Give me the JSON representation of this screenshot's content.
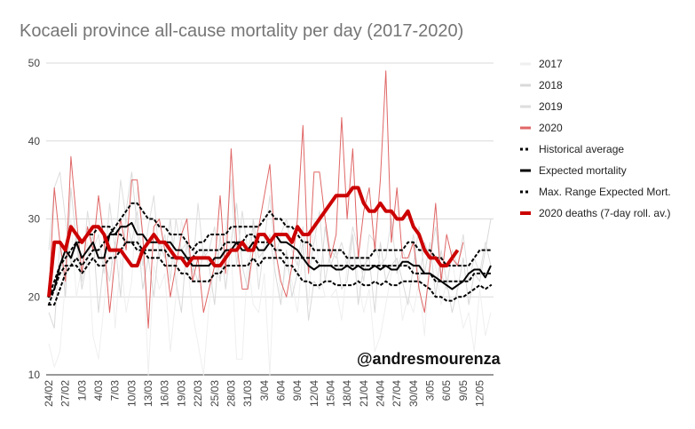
{
  "chart_data": {
    "type": "line",
    "title": "Kocaeli province all-cause mortality per day (2017-2020)",
    "watermark": "@andresmourenza",
    "ylim": [
      10,
      50
    ],
    "yticks": [
      10,
      20,
      30,
      40,
      50
    ],
    "xtick_labels": [
      "24/02",
      "27/02",
      "1/03",
      "4/03",
      "7/03",
      "10/03",
      "13/03",
      "16/03",
      "19/03",
      "22/03",
      "25/03",
      "28/03",
      "31/03",
      "3/04",
      "6/04",
      "9/04",
      "12/04",
      "15/04",
      "18/04",
      "21/04",
      "24/04",
      "27/04",
      "30/04",
      "3/05",
      "6/05",
      "9/05",
      "12/05"
    ],
    "x_start": "24/02",
    "n_days": 81,
    "series": [
      {
        "name": "2017",
        "color": "#efefef",
        "width": 1,
        "dash": "",
        "values": [
          14,
          11,
          13,
          22,
          30,
          20,
          24,
          27,
          15,
          12,
          19,
          28,
          16,
          25,
          18,
          22,
          34,
          27,
          10,
          24,
          21,
          23,
          13,
          20,
          30,
          25,
          18,
          14,
          10,
          19,
          24,
          22,
          27,
          26,
          12,
          12,
          25,
          19,
          18,
          23,
          10,
          27,
          20,
          24,
          22,
          18,
          26,
          19,
          30,
          23,
          20,
          20,
          21,
          17,
          24,
          28,
          22,
          18,
          21,
          13,
          15,
          19,
          23,
          25,
          17,
          20,
          18,
          22,
          15,
          26,
          24,
          19,
          22,
          25,
          20,
          16,
          18,
          13,
          21,
          15,
          18
        ]
      },
      {
        "name": "2018",
        "color": "#d9d9d9",
        "width": 1,
        "dash": "",
        "values": [
          18,
          16,
          27,
          20,
          34,
          27,
          21,
          25,
          28,
          18,
          25,
          22,
          27,
          20,
          31,
          36,
          29,
          21,
          25,
          20,
          27,
          25,
          30,
          22,
          18,
          27,
          24,
          22,
          26,
          24,
          19,
          28,
          21,
          27,
          32,
          24,
          21,
          30,
          25,
          26,
          28,
          23,
          19,
          26,
          20,
          23,
          27,
          17,
          22,
          21,
          29,
          24,
          26,
          21,
          22,
          28,
          19,
          24,
          25,
          18,
          27,
          22,
          24,
          25,
          22,
          19,
          24,
          29,
          23,
          27,
          20,
          26,
          22,
          18,
          21,
          25,
          19,
          23,
          22,
          26,
          30
        ]
      },
      {
        "name": "2019",
        "color": "#dedede",
        "width": 1,
        "dash": "",
        "values": [
          26,
          34,
          36,
          30,
          24,
          28,
          22,
          31,
          26,
          28,
          23,
          32,
          26,
          35,
          30,
          27,
          31,
          24,
          29,
          33,
          25,
          28,
          22,
          30,
          26,
          27,
          23,
          32,
          25,
          26,
          29,
          22,
          28,
          35,
          24,
          31,
          26,
          29,
          21,
          27,
          33,
          25,
          28,
          30,
          26,
          24,
          29,
          23,
          27,
          31,
          22,
          26,
          25,
          27,
          24,
          29,
          26,
          22,
          28,
          27,
          24,
          25,
          30,
          23,
          26,
          24,
          28,
          22,
          27,
          25,
          29,
          23,
          21,
          26,
          24,
          28,
          22,
          25,
          23,
          27,
          24
        ]
      },
      {
        "name": "2020",
        "color": "#e06666",
        "width": 1,
        "dash": "",
        "values": [
          20,
          34,
          27,
          22,
          38,
          30,
          23,
          29,
          26,
          33,
          27,
          18,
          25,
          30,
          26,
          35,
          35,
          28,
          16,
          29,
          30,
          26,
          20,
          24,
          28,
          30,
          22,
          25,
          18,
          21,
          24,
          33,
          23,
          39,
          27,
          21,
          21,
          26,
          29,
          33,
          37,
          26,
          22,
          20,
          24,
          30,
          42,
          23,
          36,
          36,
          30,
          25,
          28,
          43,
          30,
          39,
          25,
          31,
          34,
          26,
          35,
          49,
          27,
          34,
          25,
          25,
          27,
          21,
          18,
          24,
          32,
          22,
          28,
          25,
          24,
          27,
          null,
          null,
          null,
          null,
          null
        ]
      },
      {
        "name": "Historical average",
        "color": "#000000",
        "width": 2,
        "dash": "2 4",
        "values": [
          20,
          22,
          24,
          25,
          26,
          27,
          27,
          28,
          28,
          29,
          29,
          29,
          28,
          28,
          27,
          27,
          27,
          26,
          26,
          26,
          26,
          26,
          25,
          25,
          25,
          25,
          25,
          26,
          26,
          26,
          26,
          26,
          27,
          27,
          27,
          27,
          28,
          28,
          27,
          27,
          27,
          26,
          26,
          25,
          25,
          25,
          25,
          25,
          25,
          24,
          24,
          24,
          24,
          24,
          24,
          24,
          24,
          24,
          24,
          24,
          24,
          24,
          24,
          24,
          24,
          24,
          23,
          23,
          23,
          23,
          22,
          22,
          22,
          22,
          22,
          22,
          22,
          23,
          23,
          23,
          23
        ]
      },
      {
        "name": "Expected mortality",
        "color": "#000000",
        "width": 2,
        "dash": "",
        "values": [
          20,
          21,
          24,
          26,
          25,
          27,
          25,
          26,
          27,
          25,
          25,
          28,
          28,
          29,
          29,
          29.5,
          28,
          28,
          27,
          27,
          27,
          27,
          27,
          26,
          26,
          25,
          24,
          24,
          24,
          24,
          25,
          25,
          26,
          26,
          27,
          26,
          26,
          27,
          26,
          26,
          27,
          28,
          27,
          27,
          26.5,
          26,
          25,
          24,
          23.5,
          24,
          24,
          24,
          23.5,
          23.5,
          24,
          23.5,
          24,
          23.5,
          23.5,
          24,
          23.5,
          24,
          23.5,
          23.5,
          24.5,
          24.5,
          24,
          24,
          23,
          23,
          22.5,
          22,
          21.5,
          21,
          21.5,
          22,
          23,
          23.5,
          23.5,
          22.5,
          24
        ]
      },
      {
        "name": "Max. Range Expected Mort.",
        "color": "#000000",
        "width": 2,
        "dash": "2 4",
        "values": [
          19,
          21,
          23,
          24,
          24,
          25,
          24,
          25,
          26,
          26,
          27,
          28,
          29,
          30,
          31,
          32,
          32,
          31,
          30,
          30,
          29,
          29,
          28,
          28,
          28,
          27,
          26,
          27,
          27,
          28,
          28,
          28,
          28,
          29,
          29,
          29,
          29,
          29,
          29,
          30,
          31,
          30,
          30,
          29,
          29,
          28,
          27,
          27,
          26,
          26,
          26,
          26,
          26,
          26,
          25,
          25,
          25,
          25,
          25,
          26,
          26,
          26,
          26,
          26,
          26,
          27,
          27,
          26,
          26,
          26,
          25,
          25,
          24,
          24,
          24,
          24,
          24,
          25,
          26,
          26,
          26
        ]
      },
      {
        "name": "Max. Range Expected Mort.",
        "color": "#000000",
        "width": 2,
        "dash": "2 4",
        "legend": false,
        "values": [
          19,
          19,
          21,
          23,
          24,
          24,
          23,
          24,
          25,
          24,
          24,
          25,
          25,
          26,
          27,
          27,
          26,
          26,
          25,
          25,
          25,
          24,
          24,
          24,
          23,
          23,
          22,
          22,
          22,
          22,
          23,
          23,
          24,
          24,
          24,
          24,
          24,
          25,
          24,
          25,
          25,
          25,
          25,
          24,
          24,
          23,
          22,
          22,
          21.5,
          21.5,
          22,
          22,
          21.5,
          21.5,
          21.5,
          21.5,
          22,
          21.5,
          21.5,
          22,
          21.5,
          22,
          21.5,
          21.5,
          22,
          22,
          22,
          22,
          21.5,
          21,
          20,
          20,
          19.5,
          19.5,
          20,
          20,
          20.5,
          21,
          21.5,
          21,
          21.5
        ]
      },
      {
        "name": "2020 deaths (7-day roll. av.)",
        "color": "#cc0000",
        "width": 4,
        "dash": "",
        "values": [
          20,
          27,
          27,
          26,
          29,
          28,
          27,
          28,
          29,
          29,
          28,
          26,
          26,
          26,
          25,
          24,
          24,
          26,
          27,
          28,
          27,
          27,
          26,
          25,
          25,
          24,
          25,
          25,
          25,
          25,
          24,
          24,
          25,
          26,
          26,
          27,
          26,
          26,
          28,
          28,
          27,
          28,
          28,
          28,
          27,
          29,
          28,
          28,
          29,
          30,
          31,
          32,
          33,
          33,
          33,
          34,
          34,
          32,
          31,
          31,
          32,
          31,
          31,
          30,
          30,
          31,
          29,
          28,
          26,
          25,
          25,
          24,
          24,
          25,
          26,
          null,
          null,
          null,
          null,
          null,
          null
        ]
      }
    ],
    "legend_position": "right"
  }
}
